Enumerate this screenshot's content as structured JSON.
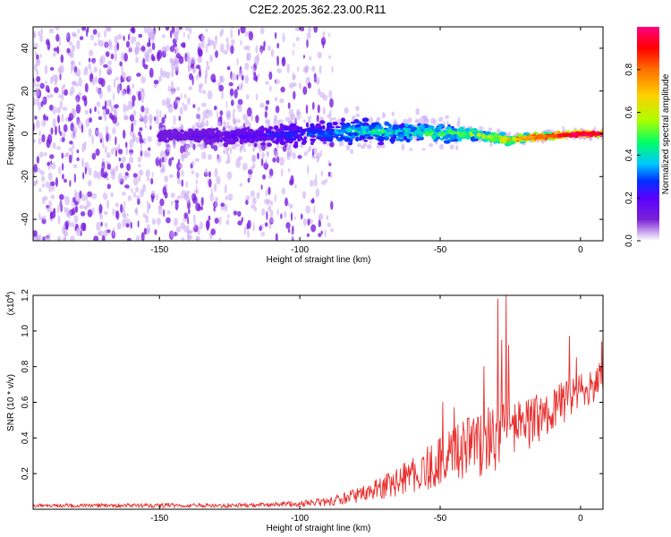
{
  "figure": {
    "title": "C2E2.2025.362.23.00.R11"
  },
  "colors": {
    "snr_line": "#e8302e",
    "colormap": [
      "#ffffff",
      "#7a20d6",
      "#5a00ff",
      "#0030ff",
      "#00c8ff",
      "#00ff66",
      "#aaff00",
      "#ffd000",
      "#ff7000",
      "#ff0000",
      "#ff0080"
    ]
  },
  "chart_data": [
    {
      "type": "heatmap",
      "title": "C2E2.2025.362.23.00.R11",
      "xlabel": "Height of straight line (km)",
      "ylabel": "Frequency (Hz)",
      "xlim": [
        -195,
        8
      ],
      "ylim": [
        -50,
        50
      ],
      "x_ticks": [
        -150,
        -100,
        -50,
        0
      ],
      "x_tick_labels": [
        "-150",
        "-100",
        "-50",
        "0"
      ],
      "y_ticks": [
        -40,
        -20,
        0,
        20,
        40
      ],
      "y_tick_labels": [
        "-40",
        "-20",
        "0",
        "20",
        "40"
      ],
      "colorbar": {
        "label": "Normalized spectral amplitude",
        "range": [
          0,
          1
        ],
        "ticks": [
          0.0,
          0.2,
          0.4,
          0.6,
          0.8
        ],
        "tick_labels": [
          "0.0",
          "0.2",
          "0.4",
          "0.6",
          "0.8"
        ]
      },
      "noise_region": {
        "x_range": [
          -195,
          -88
        ],
        "y_range": [
          -50,
          50
        ],
        "amplitude": 0.1
      },
      "signal_band": {
        "center_frequency": [
          [
            -150,
            -1
          ],
          [
            -120,
            -1
          ],
          [
            -100,
            0
          ],
          [
            -80,
            1
          ],
          [
            -60,
            1
          ],
          [
            -40,
            0
          ],
          [
            -30,
            -2
          ],
          [
            -25,
            -3
          ],
          [
            -20,
            -2
          ],
          [
            -10,
            -1
          ],
          [
            0,
            0
          ],
          [
            8,
            0
          ]
        ],
        "half_width": [
          [
            -150,
            3
          ],
          [
            -100,
            7
          ],
          [
            -70,
            6
          ],
          [
            -50,
            5
          ],
          [
            -35,
            3
          ],
          [
            -20,
            2
          ],
          [
            0,
            1.5
          ],
          [
            8,
            1.5
          ]
        ],
        "peak_amplitude": [
          [
            -150,
            0.12
          ],
          [
            -120,
            0.18
          ],
          [
            -100,
            0.25
          ],
          [
            -80,
            0.38
          ],
          [
            -60,
            0.42
          ],
          [
            -40,
            0.5
          ],
          [
            -25,
            0.7
          ],
          [
            -15,
            0.85
          ],
          [
            -5,
            0.95
          ],
          [
            8,
            1.0
          ]
        ]
      }
    },
    {
      "type": "line",
      "xlabel": "Height of straight line (km)",
      "ylabel": "SNR (10 * v/v)",
      "y_multiplier": "(x10",
      "y_multiplier_exponent": "4",
      "y_multiplier_suffix": ")",
      "xlim": [
        -195,
        8
      ],
      "ylim": [
        0,
        1.2
      ],
      "x_ticks": [
        -150,
        -100,
        -50,
        0
      ],
      "x_tick_labels": [
        "-150",
        "-100",
        "-50",
        "0"
      ],
      "y_ticks": [
        0.2,
        0.4,
        0.6,
        0.8,
        1.0,
        1.2
      ],
      "y_tick_labels": [
        "0.2",
        "0.4",
        "0.6",
        "0.8",
        "1.0",
        "1.2"
      ],
      "series": [
        {
          "name": "SNR",
          "baseline": [
            [
              -195,
              0.02
            ],
            [
              -150,
              0.02
            ],
            [
              -120,
              0.02
            ],
            [
              -100,
              0.03
            ],
            [
              -90,
              0.04
            ],
            [
              -80,
              0.07
            ],
            [
              -70,
              0.12
            ],
            [
              -60,
              0.18
            ],
            [
              -50,
              0.25
            ],
            [
              -40,
              0.32
            ],
            [
              -30,
              0.38
            ],
            [
              -20,
              0.45
            ],
            [
              -10,
              0.55
            ],
            [
              0,
              0.65
            ],
            [
              8,
              0.72
            ]
          ],
          "noise_amplitude": [
            [
              -195,
              0.01
            ],
            [
              -100,
              0.015
            ],
            [
              -80,
              0.04
            ],
            [
              -60,
              0.1
            ],
            [
              -40,
              0.18
            ],
            [
              -30,
              0.2
            ],
            [
              -20,
              0.15
            ],
            [
              0,
              0.1
            ],
            [
              8,
              0.1
            ]
          ],
          "peaks": [
            [
              -29.5,
              1.18
            ],
            [
              -28.2,
              0.95
            ],
            [
              -26.5,
              1.2
            ],
            [
              -25.5,
              0.92
            ],
            [
              -34.5,
              0.8
            ],
            [
              -49,
              0.6
            ],
            [
              -45,
              0.57
            ],
            [
              -16,
              0.62
            ],
            [
              -4,
              0.97
            ],
            [
              -1.5,
              0.85
            ],
            [
              7.5,
              0.94
            ]
          ]
        }
      ]
    }
  ]
}
